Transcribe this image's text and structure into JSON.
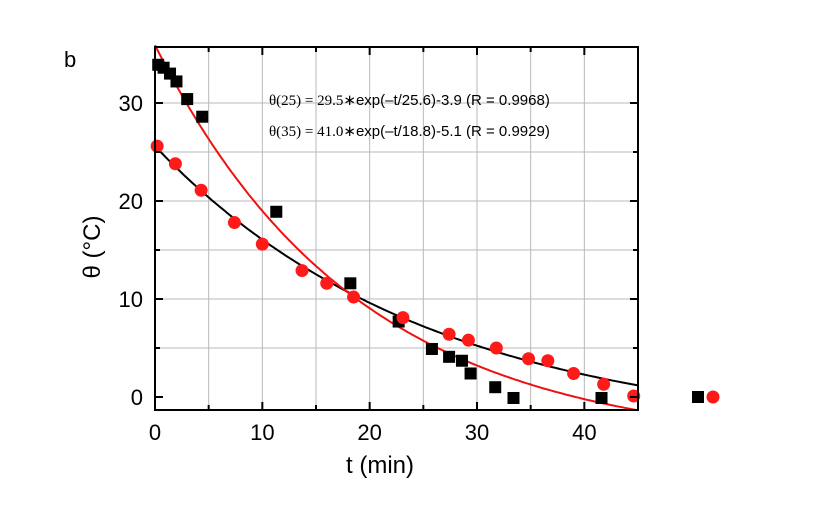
{
  "chart_data": {
    "type": "scatter",
    "panel_label": "b",
    "xlabel": "t (min)",
    "ylabel": "θ (°C)",
    "xlim": [
      0,
      45
    ],
    "ylim": [
      -1.5,
      35
    ],
    "x_ticks": [
      0,
      10,
      20,
      30,
      40
    ],
    "y_ticks": [
      0,
      10,
      20,
      30
    ],
    "grid": true,
    "series": [
      {
        "marker": "square",
        "color": "#000000",
        "x": [
          0.3,
          0.8,
          1.4,
          2.0,
          3.0,
          4.4,
          11.3,
          18.2,
          22.7,
          25.8,
          27.4,
          28.6,
          29.4,
          31.7,
          33.4,
          41.6
        ],
        "y": [
          33.9,
          33.6,
          33.0,
          32.2,
          30.4,
          28.6,
          18.9,
          11.6,
          7.7,
          4.9,
          4.1,
          3.7,
          2.4,
          1.0,
          -0.1,
          -0.1
        ],
        "fit": {
          "a": 29.5,
          "tau": 25.6,
          "c": -3.9
        }
      },
      {
        "marker": "circle",
        "color": "#ff1a1a",
        "x": [
          0.2,
          1.9,
          4.3,
          7.4,
          10.0,
          13.7,
          16.0,
          18.5,
          23.1,
          27.4,
          29.2,
          31.8,
          34.8,
          36.6,
          39.0,
          41.8,
          44.6
        ],
        "y": [
          25.6,
          23.8,
          21.1,
          17.8,
          15.6,
          12.9,
          11.6,
          10.2,
          8.1,
          6.4,
          5.8,
          5.0,
          3.9,
          3.7,
          2.4,
          1.3,
          0.1
        ],
        "fit": {
          "a": 41.0,
          "tau": 18.8,
          "c": -5.1
        }
      }
    ],
    "annotations": {
      "line1_lhs": "θ(25) = 29.5∗",
      "line1_rhs": "exp(–t/25.6)-3.9 (R = 0.9968)",
      "line2_lhs": "θ(35) = 41.0∗",
      "line2_rhs": "exp(–t/18.8)-5.1 (R = 0.9929)"
    },
    "legend_placement": "outside-right"
  }
}
